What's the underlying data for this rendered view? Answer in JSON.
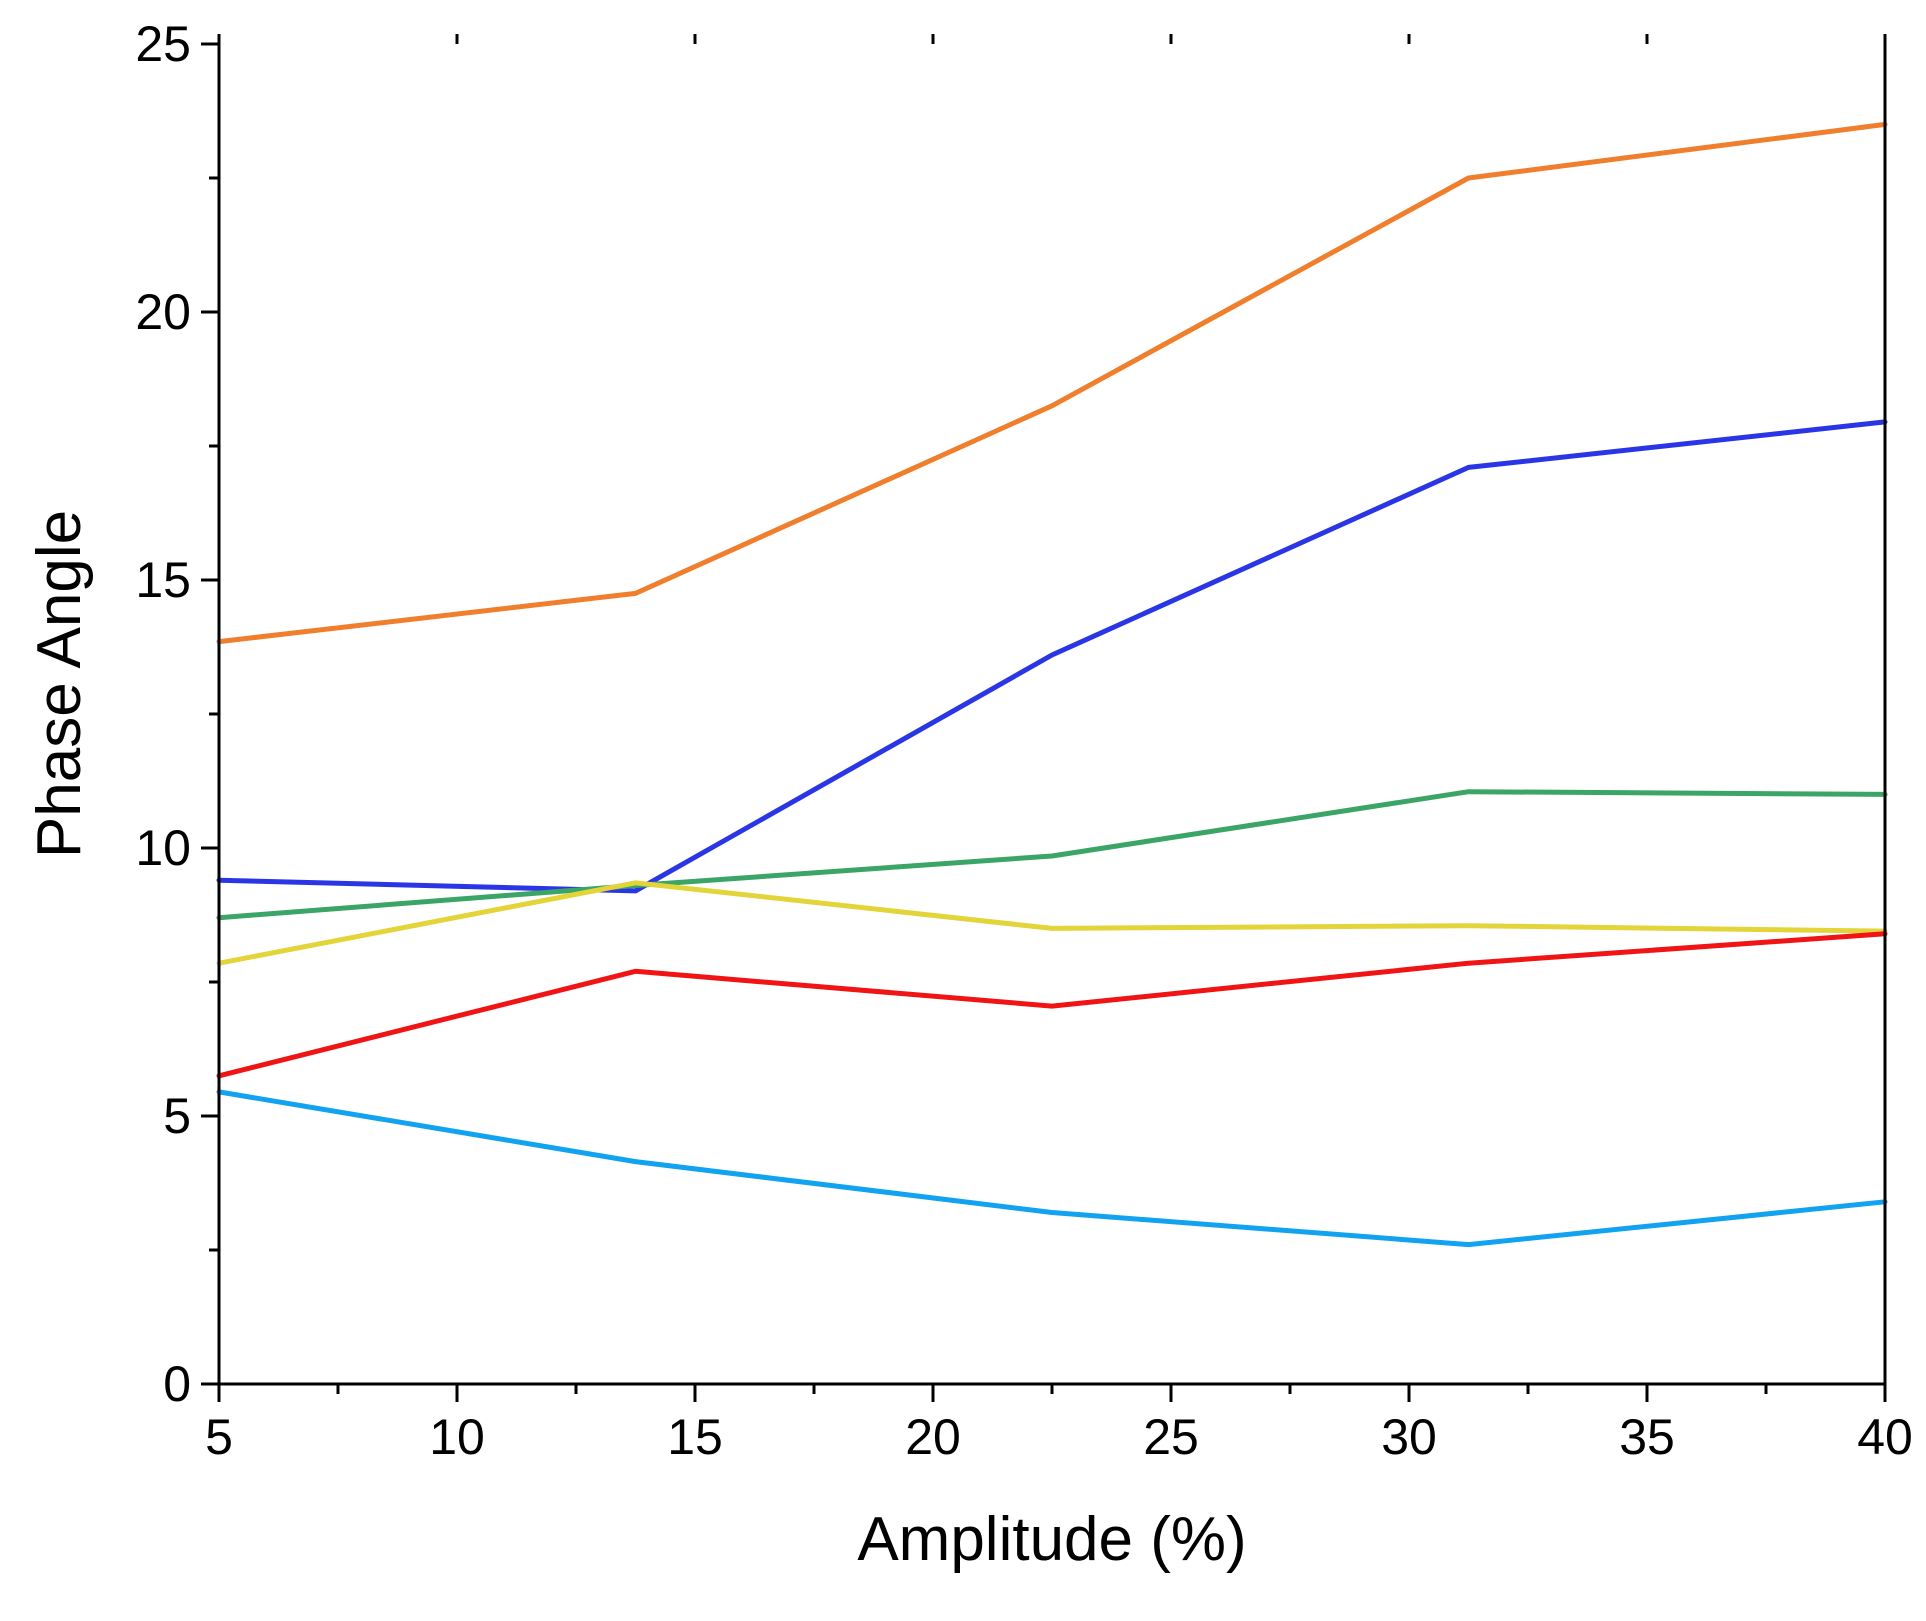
{
  "chart_data": {
    "type": "line",
    "title": "",
    "xlabel": "Amplitude (%)",
    "ylabel": "Phase Angle",
    "xlim": [
      5,
      40
    ],
    "ylim": [
      0,
      25
    ],
    "xticks": [
      5,
      10,
      15,
      20,
      25,
      30,
      35,
      40
    ],
    "yticks": [
      0,
      5,
      10,
      15,
      20,
      25
    ],
    "grid": false,
    "legend": "none",
    "x": [
      5,
      13.75,
      22.5,
      31.25,
      40
    ],
    "series": [
      {
        "name": "orange",
        "color": "#f07f2d",
        "values": [
          13.85,
          14.75,
          18.25,
          22.5,
          23.5
        ]
      },
      {
        "name": "blue",
        "color": "#2a36e6",
        "values": [
          9.4,
          9.2,
          13.6,
          17.1,
          17.95
        ]
      },
      {
        "name": "green",
        "color": "#3aa566",
        "values": [
          8.7,
          9.3,
          9.85,
          11.05,
          11.0
        ]
      },
      {
        "name": "yellow",
        "color": "#e3d43a",
        "values": [
          7.85,
          9.35,
          8.5,
          8.55,
          8.45
        ]
      },
      {
        "name": "red",
        "color": "#f01414",
        "values": [
          5.75,
          7.7,
          7.05,
          7.85,
          8.4
        ]
      },
      {
        "name": "light-blue",
        "color": "#11a3ef",
        "values": [
          5.45,
          4.15,
          3.2,
          2.6,
          3.4
        ]
      }
    ]
  }
}
